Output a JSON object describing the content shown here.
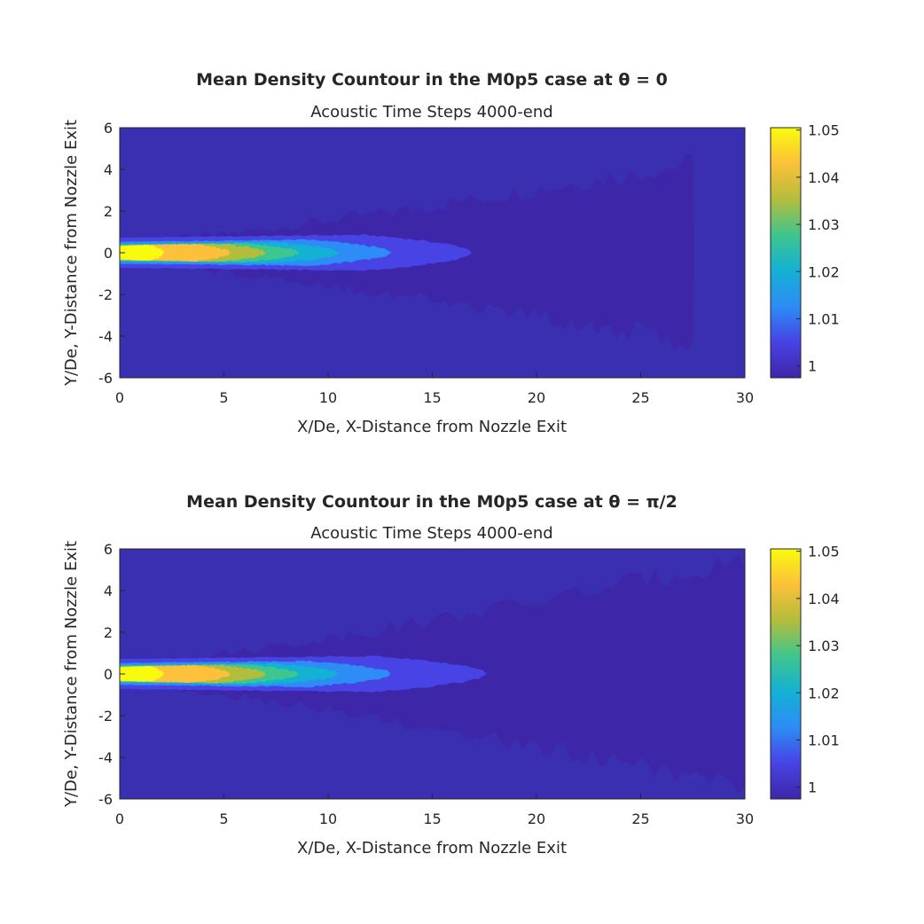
{
  "chart_data": [
    {
      "type": "contour",
      "title": "Mean Density Countour in the M0p5 case at θ = 0",
      "subtitle": "Acoustic Time Steps 4000-end",
      "xlabel": "X/De, X-Distance from Nozzle Exit",
      "ylabel": "Y/De, Y-Distance from Nozzle Exit",
      "xlim": [
        0,
        30
      ],
      "ylim": [
        -6,
        6
      ],
      "xticks": [
        "0",
        "5",
        "10",
        "15",
        "20",
        "25",
        "30"
      ],
      "yticks": [
        "-6",
        "-4",
        "-2",
        "0",
        "2",
        "4",
        "6"
      ],
      "colorbar": {
        "range": [
          0.9975,
          1.0505
        ],
        "ticks": [
          "1",
          "1.01",
          "1.02",
          "1.03",
          "1.04",
          "1.05"
        ],
        "tick_values": [
          1.0,
          1.01,
          1.02,
          1.03,
          1.04,
          1.05
        ]
      },
      "levels": [
        {
          "value": 1.003,
          "x_end": 27.5,
          "half_width_max": 4.3,
          "x_peak": 30
        },
        {
          "value": 1.008,
          "x_end": 16.9,
          "half_width_max": 0.85,
          "x_peak": 11
        },
        {
          "value": 1.015,
          "x_end": 13.0,
          "half_width_max": 0.62,
          "x_peak": 9
        },
        {
          "value": 1.022,
          "x_end": 10.5,
          "half_width_max": 0.5,
          "x_peak": 6
        },
        {
          "value": 1.029,
          "x_end": 8.6,
          "half_width_max": 0.45,
          "x_peak": 5
        },
        {
          "value": 1.036,
          "x_end": 7.0,
          "half_width_max": 0.42,
          "x_peak": 4
        },
        {
          "value": 1.043,
          "x_end": 5.3,
          "half_width_max": 0.4,
          "x_peak": 3
        },
        {
          "value": 1.05,
          "x_end": 2.1,
          "half_width_max": 0.37,
          "x_peak": 1
        }
      ]
    },
    {
      "type": "contour",
      "title": "Mean Density Countour in the M0p5 case at θ = π/2",
      "subtitle": "Acoustic Time Steps 4000-end",
      "xlabel": "X/De, X-Distance from Nozzle Exit",
      "ylabel": "Y/De, Y-Distance from Nozzle Exit",
      "xlim": [
        0,
        30
      ],
      "ylim": [
        -6,
        6
      ],
      "xticks": [
        "0",
        "5",
        "10",
        "15",
        "20",
        "25",
        "30"
      ],
      "yticks": [
        "-6",
        "-4",
        "-2",
        "0",
        "2",
        "4",
        "6"
      ],
      "colorbar": {
        "range": [
          0.9975,
          1.0505
        ],
        "ticks": [
          "1",
          "1.01",
          "1.02",
          "1.03",
          "1.04",
          "1.05"
        ],
        "tick_values": [
          1.0,
          1.01,
          1.02,
          1.03,
          1.04,
          1.05
        ]
      },
      "levels": [
        {
          "value": 1.003,
          "x_end": 30,
          "half_width_max": 5.5,
          "x_peak": 30
        },
        {
          "value": 1.008,
          "x_end": 17.6,
          "half_width_max": 0.85,
          "x_peak": 11
        },
        {
          "value": 1.015,
          "x_end": 13.0,
          "half_width_max": 0.62,
          "x_peak": 9
        },
        {
          "value": 1.022,
          "x_end": 10.5,
          "half_width_max": 0.5,
          "x_peak": 6
        },
        {
          "value": 1.029,
          "x_end": 8.6,
          "half_width_max": 0.45,
          "x_peak": 5
        },
        {
          "value": 1.036,
          "x_end": 7.0,
          "half_width_max": 0.42,
          "x_peak": 4
        },
        {
          "value": 1.043,
          "x_end": 5.3,
          "half_width_max": 0.4,
          "x_peak": 3
        },
        {
          "value": 1.05,
          "x_end": 2.1,
          "half_width_max": 0.37,
          "x_peak": 1
        }
      ]
    }
  ],
  "colors": {
    "background_level": "#3A2FB0",
    "colormap": [
      "#3E26A8",
      "#4743E5",
      "#2D8CF5",
      "#13B1D4",
      "#3FC58E",
      "#B3BD3C",
      "#FCC03A",
      "#F9FB0E"
    ]
  }
}
